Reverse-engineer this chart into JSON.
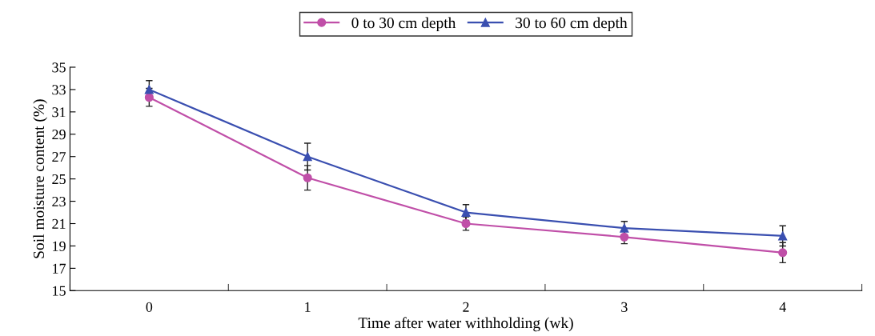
{
  "chart_data": {
    "type": "line",
    "xlabel": "Time after water withholding (wk)",
    "ylabel": "Soil moisture content (%)",
    "categories": [
      "0",
      "1",
      "2",
      "3",
      "4"
    ],
    "series": [
      {
        "name": "0 to 30 cm depth",
        "color": "#c04fa8",
        "marker": "circle",
        "values": [
          32.3,
          25.1,
          21.0,
          19.8,
          18.4
        ],
        "errors": [
          0.8,
          1.1,
          0.6,
          0.6,
          0.9
        ]
      },
      {
        "name": "30 to 60 cm depth",
        "color": "#3a4fb0",
        "marker": "triangle",
        "values": [
          33.0,
          27.0,
          22.0,
          20.6,
          19.9
        ],
        "errors": [
          0.8,
          1.2,
          0.7,
          0.6,
          0.9
        ]
      }
    ],
    "ylim": [
      15,
      35
    ],
    "yticks": [
      15,
      17,
      19,
      21,
      23,
      25,
      27,
      29,
      31,
      33,
      35
    ],
    "grid": false,
    "legend": "top",
    "line_style": "solid"
  }
}
